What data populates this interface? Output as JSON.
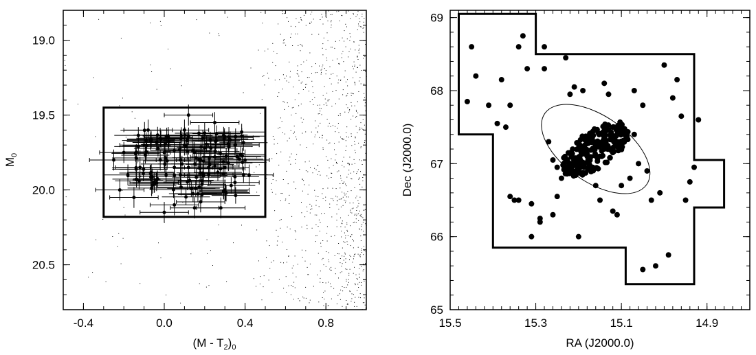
{
  "chart_data": [
    {
      "type": "scatter",
      "xlabel": "(M - T",
      "xlabel_sub": "2",
      "xlabel_close": ")",
      "xlabel_sub2": "0",
      "ylabel": "M",
      "ylabel_sub": "0",
      "xlim": [
        -0.5,
        1.0
      ],
      "ylim": [
        20.8,
        18.8
      ],
      "y_inverted": true,
      "xticks": [
        -0.4,
        0.0,
        0.4,
        0.8
      ],
      "xtick_labels": [
        "-0.4",
        "0.0",
        "0.4",
        "0.8"
      ],
      "yticks": [
        19.0,
        19.5,
        20.0,
        20.5
      ],
      "ytick_labels": [
        "19.0",
        "19.5",
        "20.0",
        "20.5"
      ],
      "selection_box": {
        "x0": -0.3,
        "x1": 0.5,
        "y0": 19.45,
        "y1": 20.18
      },
      "series": [
        {
          "description_points": "dense cluster of points with error bars",
          "x": [
            -0.25,
            -0.2,
            -0.18,
            -0.12,
            -0.1,
            -0.05,
            -0.02,
            0.0,
            0.02,
            0.05,
            0.08,
            0.1,
            0.12,
            0.15,
            0.18,
            0.2,
            0.22,
            0.25,
            0.3,
            0.35,
            0.4,
            -0.15,
            0.05,
            0.1,
            0.2,
            0.3,
            0.0,
            0.15,
            0.25,
            0.35,
            -0.08,
            0.12,
            0.18,
            0.28,
            0.05,
            0.42,
            -0.22,
            0.32,
            0.08,
            0.22
          ],
          "y": [
            19.8,
            19.75,
            19.9,
            19.85,
            19.7,
            19.95,
            19.8,
            19.75,
            19.65,
            19.9,
            19.8,
            19.7,
            19.85,
            19.75,
            19.8,
            19.72,
            19.9,
            19.78,
            19.85,
            19.7,
            19.8,
            20.05,
            20.1,
            19.6,
            19.62,
            20.0,
            20.15,
            20.12,
            19.55,
            19.95,
            19.6,
            19.5,
            20.08,
            20.12,
            19.85,
            19.9,
            20.0,
            19.65,
            19.9,
            19.85
          ],
          "xerr": 0.12,
          "yerr": 0.07
        }
      ]
    },
    {
      "type": "scatter",
      "xlabel": "RA (J2000.0)",
      "ylabel": "Dec (J2000.0)",
      "xlim": [
        15.5,
        14.8
      ],
      "ylim": [
        65,
        69.1
      ],
      "x_inverted": true,
      "xticks": [
        15.5,
        15.3,
        15.1,
        14.9
      ],
      "xtick_labels": [
        "15.5",
        "15.3",
        "15.1",
        "14.9"
      ],
      "yticks": [
        65,
        66,
        67,
        68,
        69
      ],
      "ytick_labels": [
        "65",
        "66",
        "67",
        "68",
        "69"
      ],
      "footprint": [
        [
          15.48,
          69.05
        ],
        [
          15.3,
          69.05
        ],
        [
          15.3,
          68.5
        ],
        [
          14.93,
          68.5
        ],
        [
          14.93,
          67.05
        ],
        [
          14.86,
          67.05
        ],
        [
          14.86,
          66.4
        ],
        [
          14.93,
          66.4
        ],
        [
          14.93,
          65.35
        ],
        [
          15.09,
          65.35
        ],
        [
          15.09,
          65.85
        ],
        [
          15.4,
          65.85
        ],
        [
          15.4,
          67.4
        ],
        [
          15.48,
          67.4
        ],
        [
          15.48,
          69.05
        ]
      ],
      "ellipse": {
        "center": [
          15.16,
          67.2
        ],
        "semi_major": 0.85,
        "semi_minor": 0.45,
        "position_angle_deg": -35
      },
      "series": [
        {
          "x": [
            15.46,
            15.44,
            15.45,
            15.38,
            15.36,
            15.34,
            15.33,
            15.32,
            15.28,
            15.28,
            15.27,
            15.26,
            15.25,
            15.24,
            15.23,
            15.22,
            15.21,
            15.19,
            15.18,
            15.17,
            15.16,
            15.15,
            15.14,
            15.13,
            15.12,
            15.11,
            15.1,
            15.08,
            15.07,
            15.05,
            15.03,
            15.0,
            14.98,
            14.96,
            14.94,
            14.93,
            14.92,
            15.41,
            15.39,
            15.37,
            15.35,
            15.31,
            15.29,
            15.26,
            15.2,
            15.05,
            15.02,
            14.99,
            15.07,
            15.11,
            15.14,
            15.18,
            15.22,
            15.25,
            15.29,
            15.31,
            15.34,
            15.36,
            15.06,
            15.04,
            15.01,
            14.95,
            14.97
          ],
          "y": [
            67.85,
            68.2,
            68.6,
            68.15,
            67.8,
            68.6,
            68.75,
            68.3,
            68.3,
            68.6,
            67.3,
            67.05,
            66.55,
            66.8,
            68.45,
            67.95,
            68.05,
            68.0,
            67.1,
            66.9,
            66.7,
            66.5,
            68.1,
            67.95,
            66.35,
            66.3,
            66.7,
            66.8,
            68.0,
            67.8,
            66.5,
            68.35,
            67.9,
            67.65,
            66.75,
            66.95,
            67.6,
            67.8,
            67.55,
            67.5,
            66.5,
            66.45,
            66.2,
            66.3,
            66.0,
            65.55,
            65.6,
            65.75,
            67.4,
            67.25,
            67.2,
            67.3,
            67.15,
            66.95,
            66.25,
            66.0,
            66.5,
            66.55,
            67.0,
            66.9,
            66.6,
            66.5,
            68.15
          ]
        }
      ]
    }
  ]
}
